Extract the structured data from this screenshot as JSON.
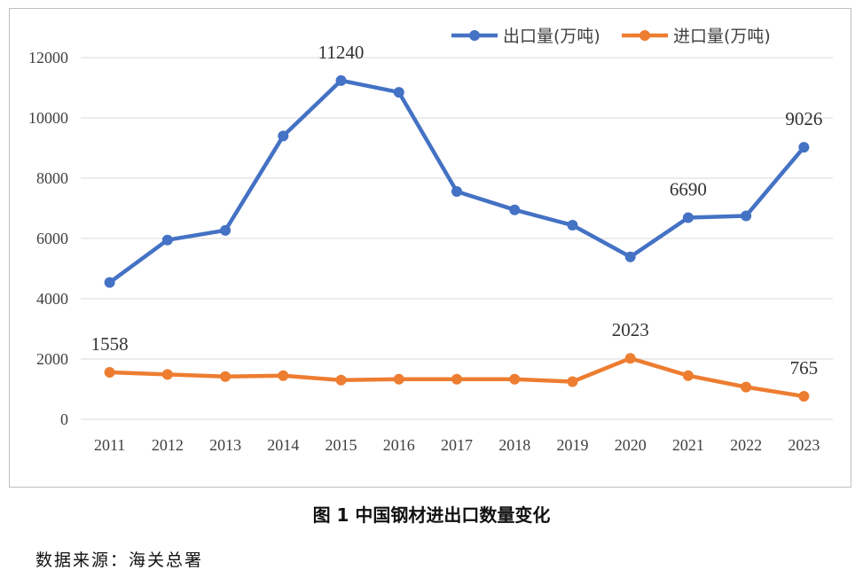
{
  "chart_data": {
    "type": "line",
    "title": "",
    "xlabel": "",
    "ylabel": "",
    "categories": [
      "2011",
      "2012",
      "2013",
      "2014",
      "2015",
      "2016",
      "2017",
      "2018",
      "2019",
      "2020",
      "2021",
      "2022",
      "2023"
    ],
    "ylim": [
      0,
      12000
    ],
    "yticks": [
      0,
      2000,
      4000,
      6000,
      8000,
      10000,
      12000
    ],
    "grid": true,
    "legend_position": "top-right",
    "series": [
      {
        "name": "出口量(万吨)",
        "color": "#4472C4",
        "values": [
          4540,
          5950,
          6270,
          9400,
          11240,
          10850,
          7560,
          6950,
          6440,
          5390,
          6690,
          6750,
          9026
        ],
        "labeled_points": [
          {
            "index": 4,
            "text": "11240"
          },
          {
            "index": 10,
            "text": "6690"
          },
          {
            "index": 12,
            "text": "9026"
          }
        ]
      },
      {
        "name": "进口量(万吨)",
        "color": "#ED7D31",
        "values": [
          1558,
          1490,
          1420,
          1450,
          1300,
          1330,
          1330,
          1330,
          1250,
          2023,
          1450,
          1070,
          765
        ],
        "labeled_points": [
          {
            "index": 0,
            "text": "1558"
          },
          {
            "index": 9,
            "text": "2023"
          },
          {
            "index": 12,
            "text": "765"
          }
        ]
      }
    ]
  },
  "caption": "图 1  中国钢材进出口数量变化",
  "source": "数据来源：海关总署"
}
